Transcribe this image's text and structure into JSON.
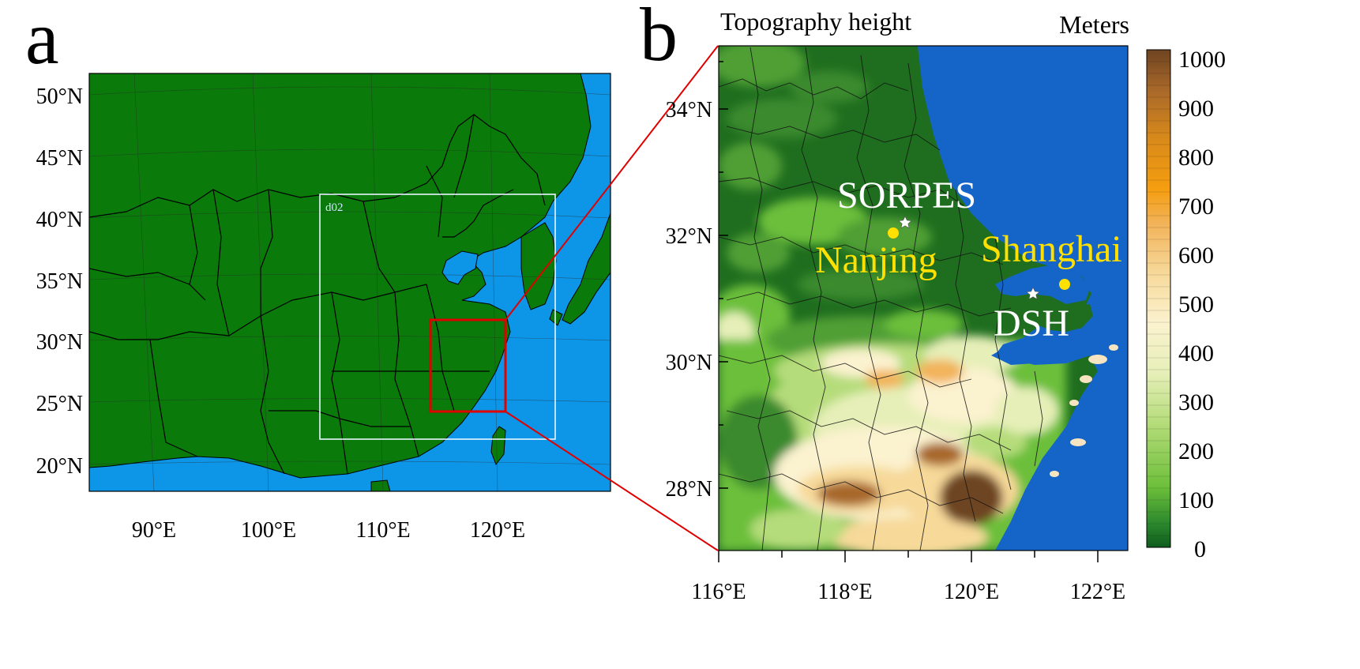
{
  "panel_a": {
    "letter": "a",
    "lat_labels": [
      "50°N",
      "45°N",
      "40°N",
      "35°N",
      "30°N",
      "25°N",
      "20°N"
    ],
    "lon_labels": [
      "90°E",
      "100°E",
      "110°E",
      "120°E"
    ],
    "domain_label": "d02",
    "colors": {
      "land": "#0a7a0a",
      "ocean": "#0d96e8",
      "domain_box": "#e6f6ff",
      "zoom_box": "#e00000"
    }
  },
  "panel_b": {
    "letter": "b",
    "title": "Topography height",
    "units": "Meters",
    "lat_labels": [
      "34°N",
      "32°N",
      "30°N",
      "28°N"
    ],
    "lon_labels": [
      "116°E",
      "118°E",
      "120°E",
      "122°E"
    ],
    "sites": {
      "sorpes": "SORPES",
      "nanjing": "Nanjing",
      "shanghai": "Shanghai",
      "dsh": "DSH"
    },
    "colors": {
      "ocean": "#1565c8",
      "low_land": "#1f6e1f",
      "site_white": "#ffffff",
      "site_yellow": "#ffe000"
    }
  },
  "colorbar": {
    "labels": [
      "1000",
      "900",
      "800",
      "700",
      "600",
      "500",
      "400",
      "300",
      "200",
      "100",
      "0"
    ],
    "min": 0,
    "max": 1000,
    "stops": [
      "#0d5c1e",
      "#2d8a2d",
      "#6cbf3a",
      "#b5dc7a",
      "#e6efb8",
      "#fbf2cf",
      "#f7d99a",
      "#f2b35a",
      "#f59e10",
      "#d98a1a",
      "#a8682a",
      "#6e4421"
    ]
  }
}
